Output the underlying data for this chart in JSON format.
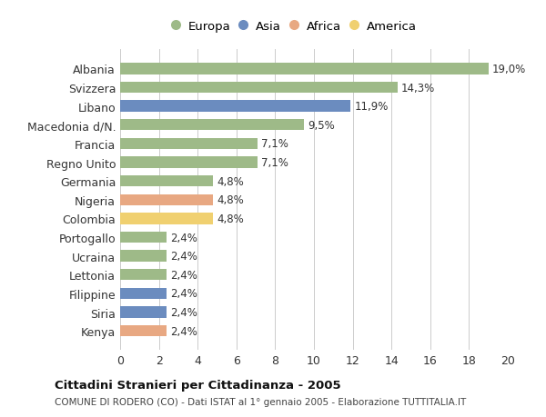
{
  "categories": [
    "Albania",
    "Svizzera",
    "Libano",
    "Macedonia d/N.",
    "Francia",
    "Regno Unito",
    "Germania",
    "Nigeria",
    "Colombia",
    "Portogallo",
    "Ucraina",
    "Lettonia",
    "Filippine",
    "Siria",
    "Kenya"
  ],
  "values": [
    19.0,
    14.3,
    11.9,
    9.5,
    7.1,
    7.1,
    4.8,
    4.8,
    4.8,
    2.4,
    2.4,
    2.4,
    2.4,
    2.4,
    2.4
  ],
  "labels": [
    "19,0%",
    "14,3%",
    "11,9%",
    "9,5%",
    "7,1%",
    "7,1%",
    "4,8%",
    "4,8%",
    "4,8%",
    "2,4%",
    "2,4%",
    "2,4%",
    "2,4%",
    "2,4%",
    "2,4%"
  ],
  "continents": [
    "Europa",
    "Europa",
    "Asia",
    "Europa",
    "Europa",
    "Europa",
    "Europa",
    "Africa",
    "America",
    "Europa",
    "Europa",
    "Europa",
    "Asia",
    "Asia",
    "Africa"
  ],
  "colors": {
    "Europa": "#9eba88",
    "Asia": "#6b8cbf",
    "Africa": "#e8a882",
    "America": "#f0d070"
  },
  "legend_order": [
    "Europa",
    "Asia",
    "Africa",
    "America"
  ],
  "title": "Cittadini Stranieri per Cittadinanza - 2005",
  "subtitle": "COMUNE DI RODERO (CO) - Dati ISTAT al 1° gennaio 2005 - Elaborazione TUTTITALIA.IT",
  "xlim": [
    0,
    20
  ],
  "xticks": [
    0,
    2,
    4,
    6,
    8,
    10,
    12,
    14,
    16,
    18,
    20
  ],
  "background_color": "#ffffff",
  "grid_color": "#cccccc"
}
